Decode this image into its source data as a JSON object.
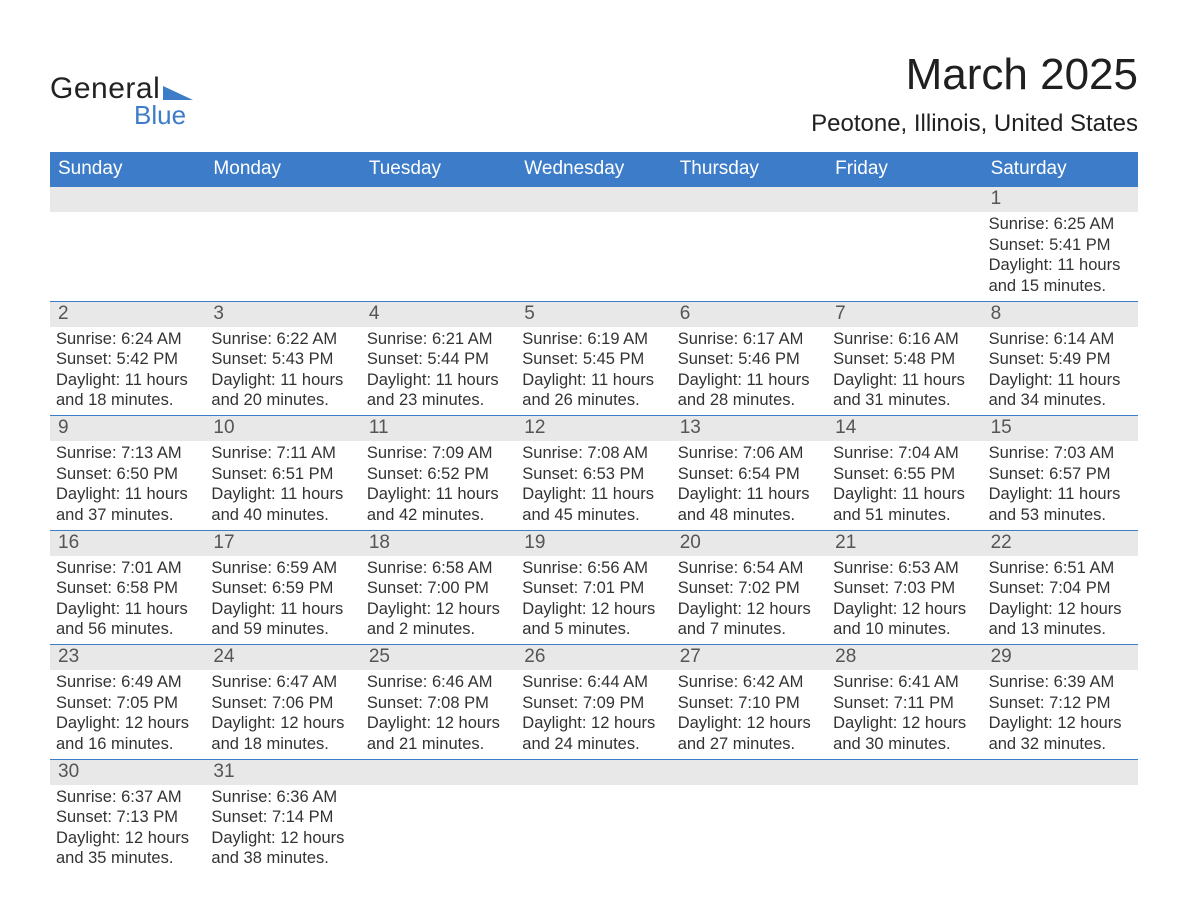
{
  "logo": {
    "general": "General",
    "blue": "Blue",
    "flag_color": "#3d7cc9"
  },
  "header": {
    "month_title": "March 2025",
    "location": "Peotone, Illinois, United States"
  },
  "colors": {
    "header_blue": "#3d7cc9",
    "divider_blue": "#3d7cc9",
    "daynum_bg": "#e8e8e8",
    "text": "#333333",
    "background": "#ffffff"
  },
  "weekdays": [
    "Sunday",
    "Monday",
    "Tuesday",
    "Wednesday",
    "Thursday",
    "Friday",
    "Saturday"
  ],
  "weeks": [
    [
      null,
      null,
      null,
      null,
      null,
      null,
      {
        "n": "1",
        "sunrise": "Sunrise: 6:25 AM",
        "sunset": "Sunset: 5:41 PM",
        "daylight": "Daylight: 11 hours and 15 minutes."
      }
    ],
    [
      {
        "n": "2",
        "sunrise": "Sunrise: 6:24 AM",
        "sunset": "Sunset: 5:42 PM",
        "daylight": "Daylight: 11 hours and 18 minutes."
      },
      {
        "n": "3",
        "sunrise": "Sunrise: 6:22 AM",
        "sunset": "Sunset: 5:43 PM",
        "daylight": "Daylight: 11 hours and 20 minutes."
      },
      {
        "n": "4",
        "sunrise": "Sunrise: 6:21 AM",
        "sunset": "Sunset: 5:44 PM",
        "daylight": "Daylight: 11 hours and 23 minutes."
      },
      {
        "n": "5",
        "sunrise": "Sunrise: 6:19 AM",
        "sunset": "Sunset: 5:45 PM",
        "daylight": "Daylight: 11 hours and 26 minutes."
      },
      {
        "n": "6",
        "sunrise": "Sunrise: 6:17 AM",
        "sunset": "Sunset: 5:46 PM",
        "daylight": "Daylight: 11 hours and 28 minutes."
      },
      {
        "n": "7",
        "sunrise": "Sunrise: 6:16 AM",
        "sunset": "Sunset: 5:48 PM",
        "daylight": "Daylight: 11 hours and 31 minutes."
      },
      {
        "n": "8",
        "sunrise": "Sunrise: 6:14 AM",
        "sunset": "Sunset: 5:49 PM",
        "daylight": "Daylight: 11 hours and 34 minutes."
      }
    ],
    [
      {
        "n": "9",
        "sunrise": "Sunrise: 7:13 AM",
        "sunset": "Sunset: 6:50 PM",
        "daylight": "Daylight: 11 hours and 37 minutes."
      },
      {
        "n": "10",
        "sunrise": "Sunrise: 7:11 AM",
        "sunset": "Sunset: 6:51 PM",
        "daylight": "Daylight: 11 hours and 40 minutes."
      },
      {
        "n": "11",
        "sunrise": "Sunrise: 7:09 AM",
        "sunset": "Sunset: 6:52 PM",
        "daylight": "Daylight: 11 hours and 42 minutes."
      },
      {
        "n": "12",
        "sunrise": "Sunrise: 7:08 AM",
        "sunset": "Sunset: 6:53 PM",
        "daylight": "Daylight: 11 hours and 45 minutes."
      },
      {
        "n": "13",
        "sunrise": "Sunrise: 7:06 AM",
        "sunset": "Sunset: 6:54 PM",
        "daylight": "Daylight: 11 hours and 48 minutes."
      },
      {
        "n": "14",
        "sunrise": "Sunrise: 7:04 AM",
        "sunset": "Sunset: 6:55 PM",
        "daylight": "Daylight: 11 hours and 51 minutes."
      },
      {
        "n": "15",
        "sunrise": "Sunrise: 7:03 AM",
        "sunset": "Sunset: 6:57 PM",
        "daylight": "Daylight: 11 hours and 53 minutes."
      }
    ],
    [
      {
        "n": "16",
        "sunrise": "Sunrise: 7:01 AM",
        "sunset": "Sunset: 6:58 PM",
        "daylight": "Daylight: 11 hours and 56 minutes."
      },
      {
        "n": "17",
        "sunrise": "Sunrise: 6:59 AM",
        "sunset": "Sunset: 6:59 PM",
        "daylight": "Daylight: 11 hours and 59 minutes."
      },
      {
        "n": "18",
        "sunrise": "Sunrise: 6:58 AM",
        "sunset": "Sunset: 7:00 PM",
        "daylight": "Daylight: 12 hours and 2 minutes."
      },
      {
        "n": "19",
        "sunrise": "Sunrise: 6:56 AM",
        "sunset": "Sunset: 7:01 PM",
        "daylight": "Daylight: 12 hours and 5 minutes."
      },
      {
        "n": "20",
        "sunrise": "Sunrise: 6:54 AM",
        "sunset": "Sunset: 7:02 PM",
        "daylight": "Daylight: 12 hours and 7 minutes."
      },
      {
        "n": "21",
        "sunrise": "Sunrise: 6:53 AM",
        "sunset": "Sunset: 7:03 PM",
        "daylight": "Daylight: 12 hours and 10 minutes."
      },
      {
        "n": "22",
        "sunrise": "Sunrise: 6:51 AM",
        "sunset": "Sunset: 7:04 PM",
        "daylight": "Daylight: 12 hours and 13 minutes."
      }
    ],
    [
      {
        "n": "23",
        "sunrise": "Sunrise: 6:49 AM",
        "sunset": "Sunset: 7:05 PM",
        "daylight": "Daylight: 12 hours and 16 minutes."
      },
      {
        "n": "24",
        "sunrise": "Sunrise: 6:47 AM",
        "sunset": "Sunset: 7:06 PM",
        "daylight": "Daylight: 12 hours and 18 minutes."
      },
      {
        "n": "25",
        "sunrise": "Sunrise: 6:46 AM",
        "sunset": "Sunset: 7:08 PM",
        "daylight": "Daylight: 12 hours and 21 minutes."
      },
      {
        "n": "26",
        "sunrise": "Sunrise: 6:44 AM",
        "sunset": "Sunset: 7:09 PM",
        "daylight": "Daylight: 12 hours and 24 minutes."
      },
      {
        "n": "27",
        "sunrise": "Sunrise: 6:42 AM",
        "sunset": "Sunset: 7:10 PM",
        "daylight": "Daylight: 12 hours and 27 minutes."
      },
      {
        "n": "28",
        "sunrise": "Sunrise: 6:41 AM",
        "sunset": "Sunset: 7:11 PM",
        "daylight": "Daylight: 12 hours and 30 minutes."
      },
      {
        "n": "29",
        "sunrise": "Sunrise: 6:39 AM",
        "sunset": "Sunset: 7:12 PM",
        "daylight": "Daylight: 12 hours and 32 minutes."
      }
    ],
    [
      {
        "n": "30",
        "sunrise": "Sunrise: 6:37 AM",
        "sunset": "Sunset: 7:13 PM",
        "daylight": "Daylight: 12 hours and 35 minutes."
      },
      {
        "n": "31",
        "sunrise": "Sunrise: 6:36 AM",
        "sunset": "Sunset: 7:14 PM",
        "daylight": "Daylight: 12 hours and 38 minutes."
      },
      null,
      null,
      null,
      null,
      null
    ]
  ]
}
